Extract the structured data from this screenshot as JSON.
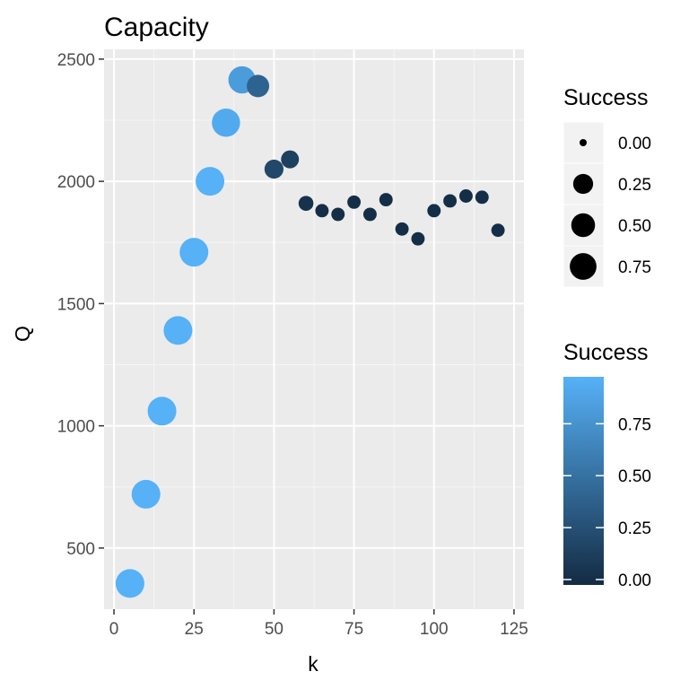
{
  "chart_data": {
    "type": "scatter",
    "title": "Capacity",
    "xlabel": "k",
    "ylabel": "Q",
    "xlim": [
      0,
      125
    ],
    "ylim": [
      250,
      2500
    ],
    "x_ticks": [
      0,
      25,
      50,
      75,
      100,
      125
    ],
    "y_ticks": [
      500,
      1000,
      1500,
      2000,
      2500
    ],
    "grid": true,
    "legend_position": "right",
    "points": [
      {
        "x": 5,
        "y": 355,
        "success": 0.95
      },
      {
        "x": 10,
        "y": 720,
        "success": 0.95
      },
      {
        "x": 15,
        "y": 1060,
        "success": 0.95
      },
      {
        "x": 20,
        "y": 1390,
        "success": 0.95
      },
      {
        "x": 25,
        "y": 1710,
        "success": 0.95
      },
      {
        "x": 30,
        "y": 2000,
        "success": 0.95
      },
      {
        "x": 35,
        "y": 2240,
        "success": 0.9
      },
      {
        "x": 40,
        "y": 2415,
        "success": 0.8
      },
      {
        "x": 45,
        "y": 2390,
        "success": 0.4
      },
      {
        "x": 50,
        "y": 2050,
        "success": 0.2
      },
      {
        "x": 55,
        "y": 2090,
        "success": 0.15
      },
      {
        "x": 60,
        "y": 1910,
        "success": 0.05
      },
      {
        "x": 65,
        "y": 1880,
        "success": 0.02
      },
      {
        "x": 70,
        "y": 1865,
        "success": 0.02
      },
      {
        "x": 75,
        "y": 1915,
        "success": 0.02
      },
      {
        "x": 80,
        "y": 1865,
        "success": 0.02
      },
      {
        "x": 85,
        "y": 1925,
        "success": 0.02
      },
      {
        "x": 90,
        "y": 1805,
        "success": 0.02
      },
      {
        "x": 95,
        "y": 1765,
        "success": 0.02
      },
      {
        "x": 100,
        "y": 1880,
        "success": 0.02
      },
      {
        "x": 105,
        "y": 1920,
        "success": 0.02
      },
      {
        "x": 110,
        "y": 1940,
        "success": 0.02
      },
      {
        "x": 115,
        "y": 1935,
        "success": 0.02
      },
      {
        "x": 120,
        "y": 1800,
        "success": 0.02
      }
    ],
    "size_legend": {
      "title": "Success",
      "values": [
        0,
        0.25,
        0.5,
        0.75
      ],
      "labels": [
        "0.00",
        "0.25",
        "0.50",
        "0.75"
      ]
    },
    "color_legend": {
      "title": "Success",
      "values": [
        0,
        0.25,
        0.5,
        0.75
      ],
      "labels": [
        "0.00",
        "0.25",
        "0.50",
        "0.75"
      ],
      "low_color": "#132b43",
      "high_color": "#56b1f7"
    },
    "colors": {
      "panel_background": "#ebebeb",
      "grid_major": "#ffffff",
      "grid_minor": "#f5f5f5"
    }
  }
}
